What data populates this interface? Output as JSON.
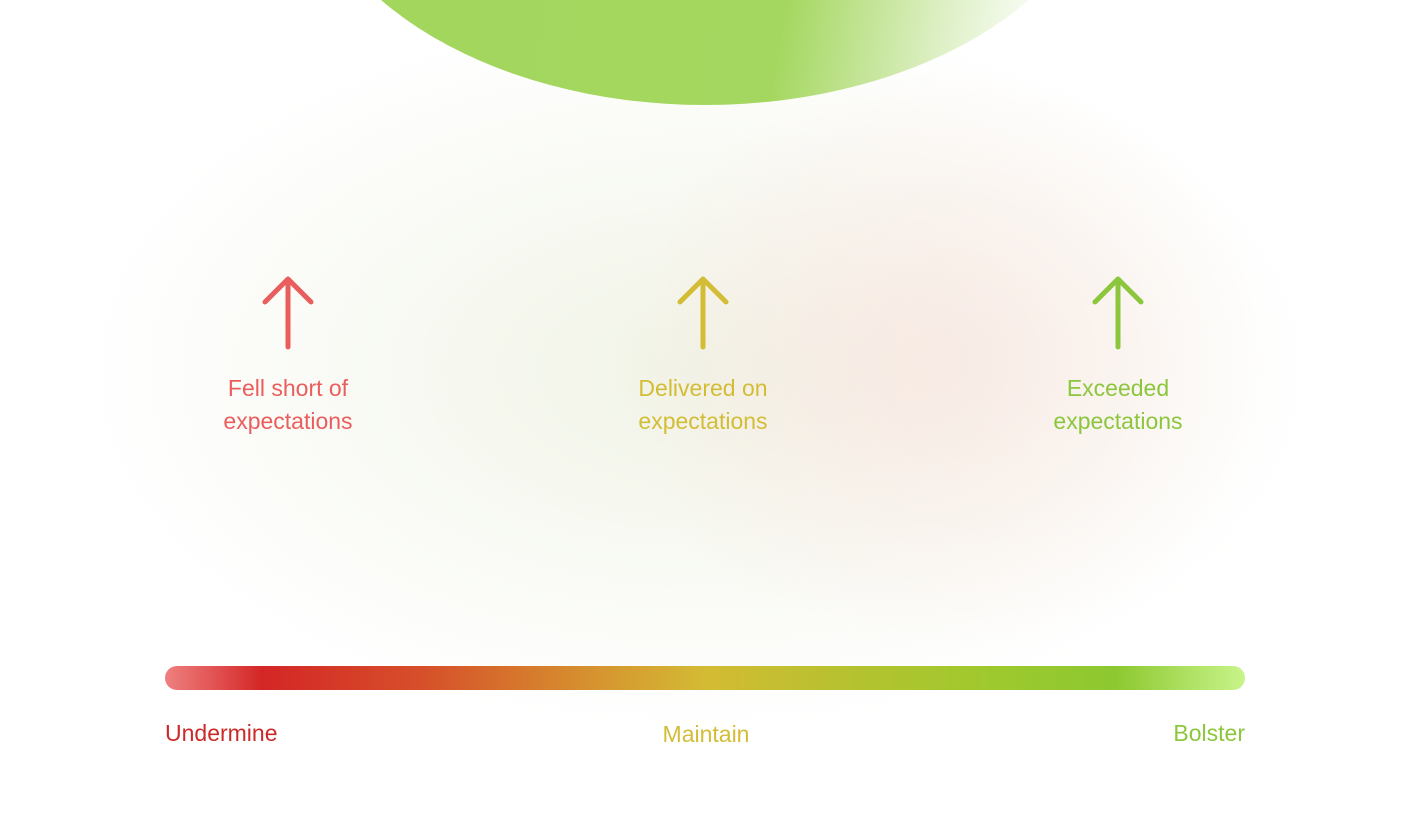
{
  "items": [
    {
      "label": "Fell short of\nexpectations",
      "color": "#ea5d5d",
      "icon": "arrow-up-icon"
    },
    {
      "label": "Delivered on\nexpectations",
      "color": "#d3bd37",
      "icon": "arrow-up-icon"
    },
    {
      "label": "Exceeded\nexpectations",
      "color": "#8cc63c",
      "icon": "arrow-up-icon"
    }
  ],
  "scale": {
    "labels": [
      {
        "text": "Undermine",
        "color": "#cc2a2a"
      },
      {
        "text": "Maintain",
        "color": "#d3bd37"
      },
      {
        "text": "Bolster",
        "color": "#8cc63c"
      }
    ],
    "gradient_colors": [
      "#ef8080",
      "#d42626",
      "#d6502a",
      "#d6882e",
      "#d4bb34",
      "#b8c130",
      "#9fc92e",
      "#8dc830",
      "#c8f48a"
    ]
  },
  "decor": {
    "blob_color": "#a1d65c"
  }
}
